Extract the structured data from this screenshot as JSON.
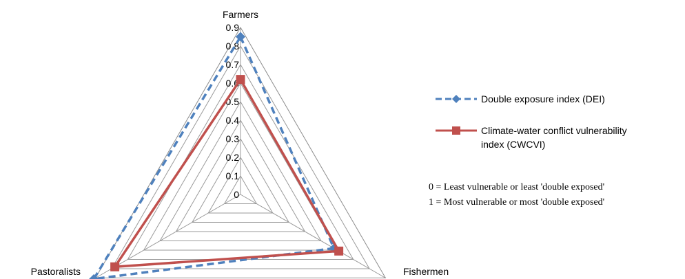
{
  "chart_data": {
    "type": "radar",
    "categories": [
      "Farmers",
      "Fishermen",
      "Pastoralists"
    ],
    "radial_ticks": [
      "0",
      "0.1",
      "0.2",
      "0.3",
      "0.4",
      "0.5",
      "0.6",
      "0.7",
      "0.8",
      "0.9"
    ],
    "rlim": [
      0,
      0.9
    ],
    "grid": true,
    "legend_position": "right",
    "series": [
      {
        "name": "Double exposure index (DEI)",
        "values": [
          0.85,
          0.58,
          0.91
        ],
        "color": "#4F81BD",
        "line_style": "dashed",
        "marker": "diamond"
      },
      {
        "name": "Climate-water conflict vulnerability index (CWCVI)",
        "name_lines": [
          "Climate-water conflict vulnerability",
          "index (CWCVI)"
        ],
        "values": [
          0.62,
          0.61,
          0.78
        ],
        "color": "#C0504D",
        "line_style": "solid",
        "marker": "square"
      }
    ],
    "notes": [
      "0 = Least vulnerable or least 'double exposed'",
      "1 = Most vulnerable or most 'double exposed'"
    ]
  }
}
